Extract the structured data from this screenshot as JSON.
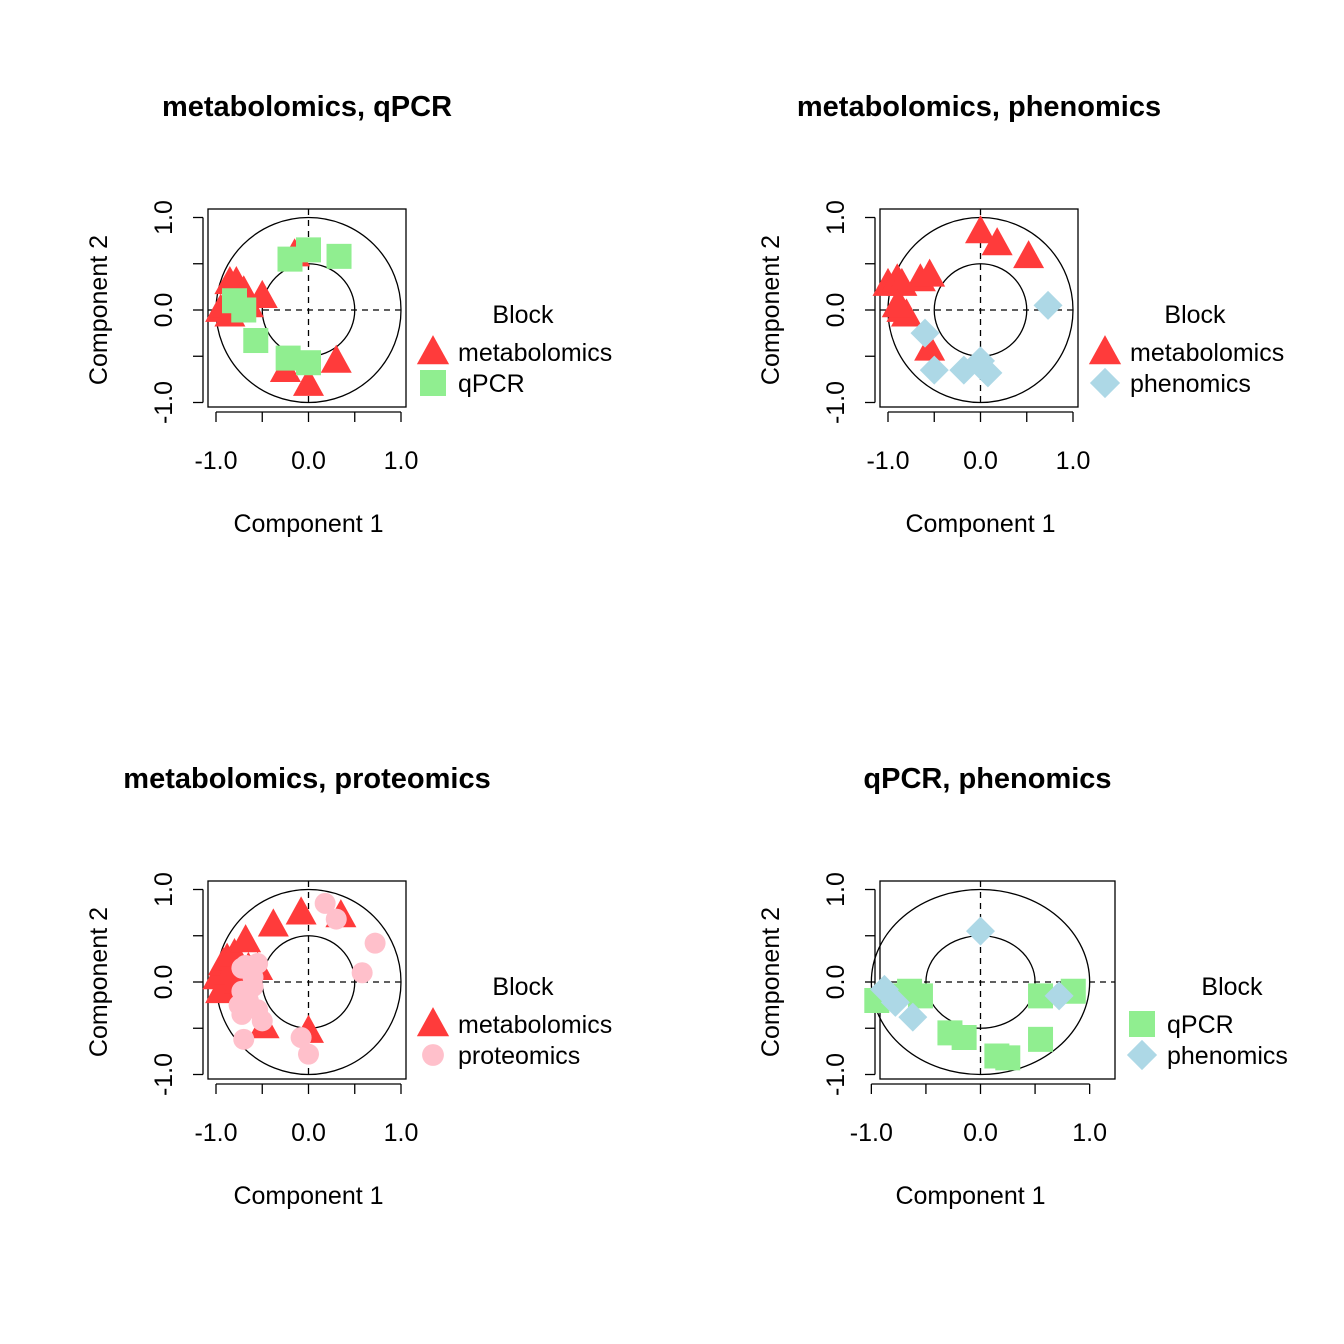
{
  "colors": {
    "metabolomics": "#FF3B3B",
    "qPCR": "#90EE90",
    "phenomics": "#ADD8E6",
    "proteomics": "#FFC0CB"
  },
  "shapes": {
    "metabolomics": "triangle",
    "qPCR": "square",
    "phenomics": "diamond",
    "proteomics": "circle"
  },
  "chart_data": [
    {
      "type": "scatter",
      "title": "metabolomics, qPCR",
      "xlabel": "Component  1",
      "ylabel": "Component  2",
      "xticks": [
        "-1.0",
        "0.0",
        "1.0"
      ],
      "yticks": [
        "-1.0",
        "0.0",
        "1.0"
      ],
      "xlim": [
        -1.0,
        1.0
      ],
      "ylim": [
        -1.0,
        1.0
      ],
      "circles": [
        1.0,
        0.5
      ],
      "legend_title": "Block",
      "legend": [
        "metabolomics",
        "qPCR"
      ],
      "series": [
        {
          "name": "metabolomics",
          "points": [
            [
              -0.95,
              0.0
            ],
            [
              -0.9,
              0.05
            ],
            [
              -0.85,
              -0.05
            ],
            [
              -0.85,
              0.3
            ],
            [
              -0.78,
              0.3
            ],
            [
              -0.75,
              0.1
            ],
            [
              -0.7,
              0.2
            ],
            [
              -0.65,
              0.05
            ],
            [
              -0.5,
              0.15
            ],
            [
              -0.15,
              0.6
            ],
            [
              -0.25,
              -0.65
            ],
            [
              0.3,
              -0.55
            ],
            [
              0.0,
              -0.8
            ]
          ]
        },
        {
          "name": "qPCR",
          "points": [
            [
              -0.8,
              0.1
            ],
            [
              -0.7,
              0.0
            ],
            [
              -0.57,
              -0.33
            ],
            [
              -0.2,
              0.55
            ],
            [
              0.0,
              0.65
            ],
            [
              0.33,
              0.58
            ],
            [
              -0.22,
              -0.52
            ],
            [
              0.0,
              -0.57
            ]
          ]
        }
      ]
    },
    {
      "type": "scatter",
      "title": "metabolomics, phenomics",
      "xlabel": "Component  1",
      "ylabel": "Component  2",
      "xticks": [
        "-1.0",
        "0.0",
        "1.0"
      ],
      "yticks": [
        "-1.0",
        "0.0",
        "1.0"
      ],
      "xlim": [
        -1.0,
        1.0
      ],
      "ylim": [
        -1.0,
        1.0
      ],
      "circles": [
        1.0,
        0.5
      ],
      "legend_title": "Block",
      "legend": [
        "metabolomics",
        "phenomics"
      ],
      "series": [
        {
          "name": "metabolomics",
          "points": [
            [
              -1.0,
              0.28
            ],
            [
              -0.9,
              0.33
            ],
            [
              -0.85,
              0.28
            ],
            [
              -0.65,
              0.33
            ],
            [
              -0.55,
              0.38
            ],
            [
              -0.85,
              0.0
            ],
            [
              -0.8,
              -0.05
            ],
            [
              -0.9,
              0.05
            ],
            [
              -0.55,
              -0.42
            ],
            [
              0.0,
              0.85
            ],
            [
              0.18,
              0.72
            ],
            [
              0.52,
              0.58
            ]
          ]
        },
        {
          "name": "phenomics",
          "points": [
            [
              0.73,
              0.05
            ],
            [
              -0.6,
              -0.25
            ],
            [
              -0.5,
              -0.65
            ],
            [
              -0.18,
              -0.65
            ],
            [
              0.0,
              -0.55
            ],
            [
              0.08,
              -0.68
            ]
          ]
        }
      ]
    },
    {
      "type": "scatter",
      "title": "metabolomics, proteomics",
      "xlabel": "Component  1",
      "ylabel": "Component  2",
      "xticks": [
        "-1.0",
        "0.0",
        "1.0"
      ],
      "yticks": [
        "-1.0",
        "0.0",
        "1.0"
      ],
      "xlim": [
        -1.0,
        1.0
      ],
      "ylim": [
        -1.0,
        1.0
      ],
      "circles": [
        1.0,
        0.5
      ],
      "legend_title": "Block",
      "legend": [
        "metabolomics",
        "proteomics"
      ],
      "series": [
        {
          "name": "metabolomics",
          "points": [
            [
              -0.98,
              0.05
            ],
            [
              -0.95,
              -0.1
            ],
            [
              -0.92,
              0.2
            ],
            [
              -0.88,
              0.25
            ],
            [
              -0.85,
              0.1
            ],
            [
              -0.82,
              -0.05
            ],
            [
              -0.8,
              0.3
            ],
            [
              -0.75,
              0.0
            ],
            [
              -0.68,
              0.45
            ],
            [
              -0.65,
              0.15
            ],
            [
              -0.55,
              0.15
            ],
            [
              -0.38,
              0.62
            ],
            [
              -0.08,
              0.75
            ],
            [
              0.35,
              0.72
            ],
            [
              -0.48,
              -0.48
            ],
            [
              0.0,
              -0.53
            ]
          ]
        },
        {
          "name": "proteomics",
          "points": [
            [
              0.18,
              0.85
            ],
            [
              0.3,
              0.68
            ],
            [
              0.72,
              0.42
            ],
            [
              0.58,
              0.1
            ],
            [
              -0.72,
              0.15
            ],
            [
              -0.68,
              0.18
            ],
            [
              -0.55,
              0.2
            ],
            [
              -0.6,
              -0.05
            ],
            [
              -0.72,
              -0.1
            ],
            [
              -0.75,
              -0.25
            ],
            [
              -0.65,
              -0.2
            ],
            [
              -0.55,
              -0.3
            ],
            [
              -0.5,
              -0.42
            ],
            [
              -0.72,
              -0.35
            ],
            [
              -0.7,
              -0.62
            ],
            [
              -0.08,
              -0.6
            ],
            [
              0.0,
              -0.78
            ],
            [
              -0.6,
              0.05
            ]
          ]
        }
      ]
    },
    {
      "type": "scatter",
      "title": "qPCR, phenomics",
      "xlabel": "Component  1",
      "ylabel": "Component  2",
      "xticks": [
        "-1.0",
        "0.0",
        "1.0"
      ],
      "yticks": [
        "-1.0",
        "0.0",
        "1.0"
      ],
      "xlim": [
        -1.0,
        1.0
      ],
      "ylim": [
        -1.0,
        1.0
      ],
      "circles": [
        1.0,
        0.5
      ],
      "legend_title": "Block",
      "legend": [
        "qPCR",
        "phenomics"
      ],
      "series": [
        {
          "name": "qPCR",
          "points": [
            [
              -0.95,
              -0.2
            ],
            [
              -0.85,
              -0.15
            ],
            [
              -0.65,
              -0.1
            ],
            [
              -0.55,
              -0.15
            ],
            [
              -0.28,
              -0.55
            ],
            [
              -0.15,
              -0.6
            ],
            [
              0.15,
              -0.8
            ],
            [
              0.25,
              -0.82
            ],
            [
              0.55,
              -0.15
            ],
            [
              0.85,
              -0.1
            ],
            [
              0.55,
              -0.62
            ]
          ]
        },
        {
          "name": "phenomics",
          "points": [
            [
              0.0,
              0.55
            ],
            [
              -0.88,
              -0.08
            ],
            [
              -0.78,
              -0.22
            ],
            [
              -0.62,
              -0.38
            ],
            [
              0.72,
              -0.15
            ]
          ]
        }
      ]
    }
  ]
}
